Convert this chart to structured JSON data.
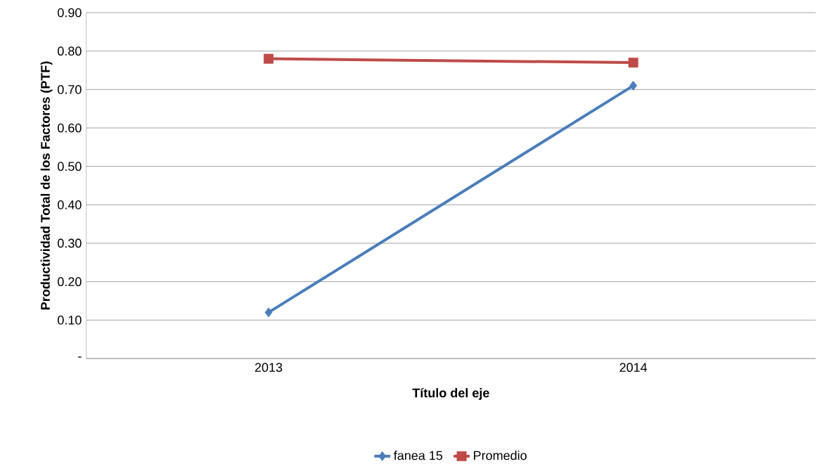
{
  "chart_data": {
    "type": "line",
    "xlabel": "Título del eje",
    "ylabel": "Productividad Total de los Factores (PTF)",
    "categories": [
      "2013",
      "2014"
    ],
    "series": [
      {
        "name": "fanea 15",
        "color": "#4a7ebb",
        "marker": "diamond",
        "values": [
          0.12,
          0.71
        ]
      },
      {
        "name": "Promedio",
        "color": "#be4b48",
        "marker": "square",
        "values": [
          0.78,
          0.77
        ]
      }
    ],
    "ylim": [
      0,
      0.9
    ],
    "yticks": [
      {
        "value": 0,
        "label": "-"
      },
      {
        "value": 0.1,
        "label": "0.10"
      },
      {
        "value": 0.2,
        "label": "0.20"
      },
      {
        "value": 0.3,
        "label": "0.30"
      },
      {
        "value": 0.4,
        "label": "0.40"
      },
      {
        "value": 0.5,
        "label": "0.50"
      },
      {
        "value": 0.6,
        "label": "0.60"
      },
      {
        "value": 0.7,
        "label": "0.70"
      },
      {
        "value": 0.8,
        "label": "0.80"
      },
      {
        "value": 0.9,
        "label": "0.90"
      }
    ],
    "grid": "y",
    "legend": "bottom",
    "line_style": "solid"
  }
}
